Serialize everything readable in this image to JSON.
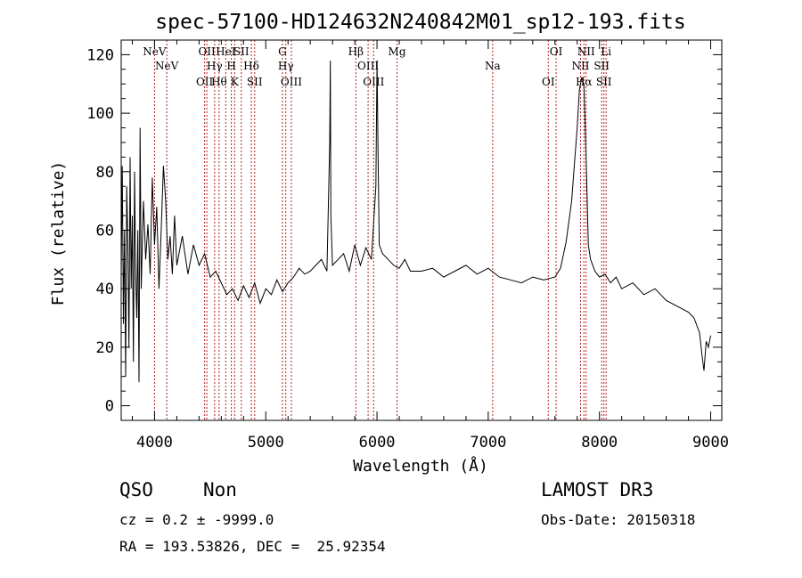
{
  "chart_data": {
    "type": "line",
    "title": "spec-57100-HD124632N240842M01_sp12-193.fits",
    "xlabel": "Wavelength (Å)",
    "ylabel": "Flux (relative)",
    "xlim": [
      3700,
      9100
    ],
    "ylim": [
      -5,
      125
    ],
    "xticks": [
      4000,
      5000,
      6000,
      7000,
      8000,
      9000
    ],
    "yticks": [
      0,
      20,
      40,
      60,
      80,
      100,
      120
    ],
    "series": [
      {
        "name": "flux",
        "x": [
          3700,
          3710,
          3720,
          3730,
          3740,
          3750,
          3760,
          3770,
          3780,
          3790,
          3800,
          3810,
          3820,
          3830,
          3840,
          3850,
          3860,
          3870,
          3880,
          3890,
          3900,
          3920,
          3940,
          3960,
          3980,
          4000,
          4020,
          4040,
          4060,
          4080,
          4100,
          4120,
          4140,
          4160,
          4180,
          4200,
          4250,
          4300,
          4350,
          4400,
          4450,
          4500,
          4550,
          4600,
          4650,
          4700,
          4750,
          4800,
          4850,
          4900,
          4950,
          5000,
          5050,
          5100,
          5150,
          5200,
          5250,
          5300,
          5350,
          5400,
          5450,
          5500,
          5550,
          5575,
          5580,
          5585,
          5600,
          5650,
          5700,
          5750,
          5800,
          5850,
          5900,
          5950,
          5990,
          6000,
          6010,
          6020,
          6050,
          6100,
          6150,
          6200,
          6250,
          6300,
          6400,
          6500,
          6600,
          6700,
          6800,
          6900,
          7000,
          7100,
          7200,
          7300,
          7400,
          7500,
          7600,
          7650,
          7700,
          7750,
          7780,
          7800,
          7820,
          7840,
          7860,
          7870,
          7880,
          7890,
          7900,
          7920,
          7940,
          7960,
          7980,
          8000,
          8050,
          8100,
          8150,
          8200,
          8300,
          8400,
          8500,
          8600,
          8700,
          8800,
          8850,
          8900,
          8920,
          8940,
          8960,
          8980,
          9000
        ],
        "y": [
          45,
          82,
          28,
          60,
          10,
          75,
          55,
          20,
          85,
          40,
          65,
          15,
          80,
          45,
          30,
          60,
          8,
          95,
          40,
          55,
          70,
          50,
          62,
          45,
          78,
          55,
          68,
          40,
          60,
          82,
          70,
          50,
          58,
          45,
          65,
          48,
          58,
          45,
          55,
          48,
          52,
          44,
          46,
          42,
          38,
          40,
          36,
          41,
          37,
          42,
          35,
          40,
          38,
          43,
          39,
          42,
          44,
          47,
          45,
          46,
          48,
          50,
          46,
          90,
          118,
          65,
          48,
          50,
          52,
          46,
          55,
          48,
          54,
          50,
          75,
          118,
          85,
          55,
          52,
          50,
          48,
          47,
          50,
          46,
          46,
          47,
          44,
          46,
          48,
          45,
          47,
          44,
          43,
          42,
          44,
          43,
          44,
          47,
          56,
          70,
          85,
          95,
          108,
          112,
          110,
          98,
          85,
          70,
          55,
          50,
          48,
          46,
          45,
          44,
          45,
          42,
          44,
          40,
          42,
          38,
          40,
          36,
          34,
          32,
          30,
          25,
          18,
          12,
          22,
          20,
          24
        ]
      }
    ],
    "lines": [
      {
        "x": 4000,
        "label": "NeV"
      },
      {
        "x": 4110,
        "label": "NeV"
      },
      {
        "x": 4450,
        "label": "OII"
      },
      {
        "x": 4470,
        "label": "OII"
      },
      {
        "x": 4540,
        "label": "Hγ"
      },
      {
        "x": 4580,
        "label": "Hθ"
      },
      {
        "x": 4640,
        "label": "HeI"
      },
      {
        "x": 4690,
        "label": "H"
      },
      {
        "x": 4720,
        "label": "K"
      },
      {
        "x": 4780,
        "label": "SII"
      },
      {
        "x": 4870,
        "label": "Hδ"
      },
      {
        "x": 4900,
        "label": "SII"
      },
      {
        "x": 5150,
        "label": "G"
      },
      {
        "x": 5180,
        "label": "Hγ"
      },
      {
        "x": 5230,
        "label": "OIII"
      },
      {
        "x": 5810,
        "label": "Hβ"
      },
      {
        "x": 5920,
        "label": "OIII"
      },
      {
        "x": 5970,
        "label": "OIII"
      },
      {
        "x": 6180,
        "label": "Mg"
      },
      {
        "x": 7040,
        "label": "Na"
      },
      {
        "x": 7540,
        "label": "OI"
      },
      {
        "x": 7610,
        "label": "OI"
      },
      {
        "x": 7830,
        "label": "NII"
      },
      {
        "x": 7860,
        "label": "Hα"
      },
      {
        "x": 7880,
        "label": "NII"
      },
      {
        "x": 8020,
        "label": "SII"
      },
      {
        "x": 8040,
        "label": "SII"
      },
      {
        "x": 8060,
        "label": "Li"
      }
    ]
  },
  "info": {
    "class": "QSO",
    "subclass": "Non",
    "survey": "LAMOST DR3",
    "cz": "cz = 0.2 ± -9999.0",
    "obs_date": "Obs-Date: 20150318",
    "coords": "RA = 193.53826, DEC =  25.92354"
  }
}
